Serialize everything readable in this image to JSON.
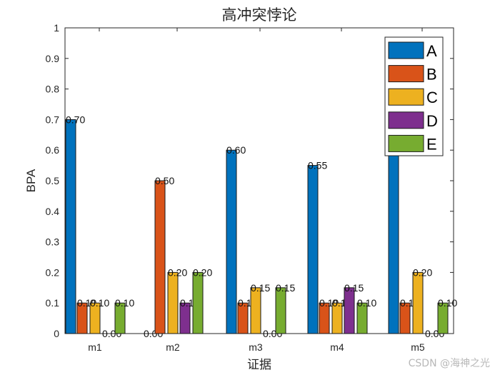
{
  "chart_data": {
    "type": "bar",
    "title": "高冲突悖论",
    "xlabel": "证据",
    "ylabel": "BPA",
    "ylim": [
      0,
      1
    ],
    "yticks": [
      "0",
      "0.1",
      "0.2",
      "0.3",
      "0.4",
      "0.5",
      "0.6",
      "0.7",
      "0.8",
      "0.9",
      "1"
    ],
    "categories": [
      "m1",
      "m2",
      "m3",
      "m4",
      "m5"
    ],
    "series": [
      {
        "name": "A",
        "color": "#0072BD",
        "values": [
          0.7,
          0.0,
          0.6,
          0.55,
          0.6
        ],
        "labels": [
          "0.70",
          "0.00",
          "0.60",
          "0.55",
          ""
        ]
      },
      {
        "name": "B",
        "color": "#D95319",
        "values": [
          0.1,
          0.5,
          0.1,
          0.1,
          0.1
        ],
        "labels": [
          "0.10",
          "0.50",
          "0.10",
          "0.10",
          "0.10"
        ]
      },
      {
        "name": "C",
        "color": "#EDB120",
        "values": [
          0.1,
          0.2,
          0.15,
          0.1,
          0.2
        ],
        "labels": [
          "0.10",
          "0.20",
          "0.15",
          "0.10",
          "0.20"
        ]
      },
      {
        "name": "D",
        "color": "#7E2F8E",
        "values": [
          0.0,
          0.1,
          0.0,
          0.15,
          0.0
        ],
        "labels": [
          "0.00",
          "0.10",
          "0.00",
          "0.15",
          "0.00"
        ]
      },
      {
        "name": "E",
        "color": "#77AC30",
        "values": [
          0.1,
          0.2,
          0.15,
          0.1,
          0.1
        ],
        "labels": [
          "0.10",
          "0.20",
          "0.15",
          "0.10",
          "0.10"
        ]
      }
    ],
    "grid": false,
    "legend_position": "northeast",
    "bar_labels": true
  },
  "watermark": "CSDN @海神之光"
}
